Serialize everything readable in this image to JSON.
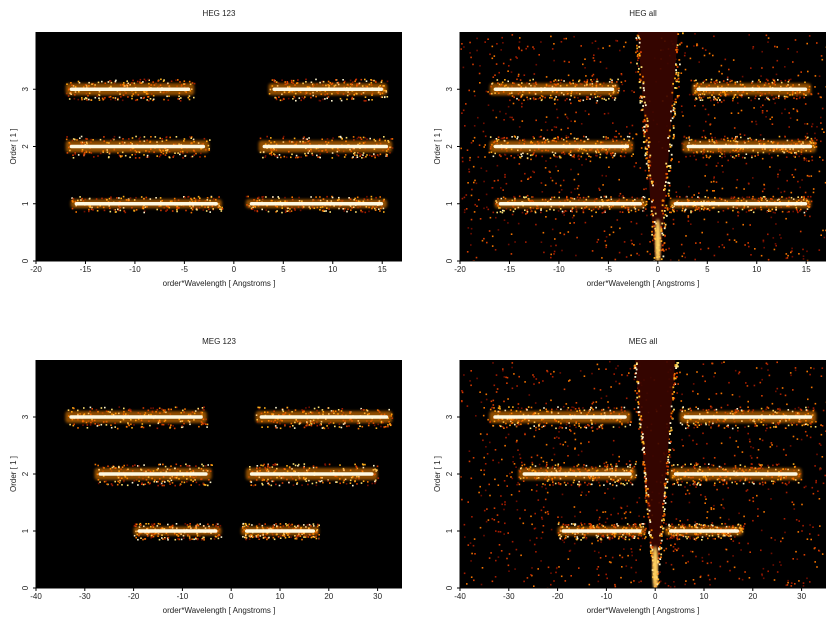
{
  "chart_data": [
    {
      "type": "heatmap",
      "title": "HEG 123",
      "xlabel": "order*Wavelength [ Angstroms ]",
      "ylabel": "Order [ 1 ]",
      "xlim": [
        -20,
        17
      ],
      "ylim": [
        0,
        4
      ],
      "xticks": [
        -20,
        -15,
        -10,
        -5,
        0,
        5,
        10,
        15
      ],
      "yticks": [
        0,
        1,
        2,
        3
      ],
      "bands": [
        {
          "order": 1,
          "segments": [
            [
              -16.5,
              -1.2
            ],
            [
              1.2,
              15.5
            ]
          ]
        },
        {
          "order": 2,
          "segments": [
            [
              -17.0,
              -2.5
            ],
            [
              2.5,
              16.0
            ]
          ]
        },
        {
          "order": 3,
          "segments": [
            [
              -17.0,
              -4.0
            ],
            [
              3.5,
              15.5
            ]
          ]
        }
      ],
      "v_shape": false
    },
    {
      "type": "heatmap",
      "title": "HEG all",
      "xlabel": "order*Wavelength [ Angstroms ]",
      "ylabel": "Order [ 1 ]",
      "xlim": [
        -20,
        17
      ],
      "ylim": [
        0,
        4
      ],
      "xticks": [
        -20,
        -15,
        -10,
        -5,
        0,
        5,
        10,
        15
      ],
      "yticks": [
        0,
        1,
        2,
        3
      ],
      "bands": [
        {
          "order": 1,
          "segments": [
            [
              -16.5,
              -1.2
            ],
            [
              1.2,
              15.5
            ]
          ]
        },
        {
          "order": 2,
          "segments": [
            [
              -17.0,
              -2.5
            ],
            [
              2.5,
              16.0
            ]
          ]
        },
        {
          "order": 3,
          "segments": [
            [
              -17.0,
              -4.0
            ],
            [
              3.5,
              15.5
            ]
          ]
        }
      ],
      "v_shape": true
    },
    {
      "type": "heatmap",
      "title": "MEG 123",
      "xlabel": "order*Wavelength [ Angstroms ]",
      "ylabel": "Order [ 1 ]",
      "xlim": [
        -40,
        35
      ],
      "ylim": [
        0,
        4
      ],
      "xticks": [
        -40,
        -30,
        -20,
        -10,
        0,
        10,
        20,
        30
      ],
      "yticks": [
        0,
        1,
        2,
        3
      ],
      "bands": [
        {
          "order": 1,
          "segments": [
            [
              -20.0,
              -2.0
            ],
            [
              2.0,
              18.0
            ]
          ]
        },
        {
          "order": 2,
          "segments": [
            [
              -28.0,
              -4.0
            ],
            [
              3.0,
              30.0
            ]
          ]
        },
        {
          "order": 3,
          "segments": [
            [
              -34.0,
              -5.0
            ],
            [
              5.0,
              33.0
            ]
          ]
        }
      ],
      "v_shape": false
    },
    {
      "type": "heatmap",
      "title": "MEG all",
      "xlabel": "order*Wavelength [ Angstroms ]",
      "ylabel": "Order [ 1 ]",
      "xlim": [
        -40,
        35
      ],
      "ylim": [
        0,
        4
      ],
      "xticks": [
        -40,
        -30,
        -20,
        -10,
        0,
        10,
        20,
        30
      ],
      "yticks": [
        0,
        1,
        2,
        3
      ],
      "bands": [
        {
          "order": 1,
          "segments": [
            [
              -20.0,
              -2.0
            ],
            [
              2.0,
              18.0
            ]
          ]
        },
        {
          "order": 2,
          "segments": [
            [
              -28.0,
              -4.0
            ],
            [
              3.0,
              30.0
            ]
          ]
        },
        {
          "order": 3,
          "segments": [
            [
              -34.0,
              -5.0
            ],
            [
              5.0,
              33.0
            ]
          ]
        }
      ],
      "v_shape": true
    }
  ]
}
